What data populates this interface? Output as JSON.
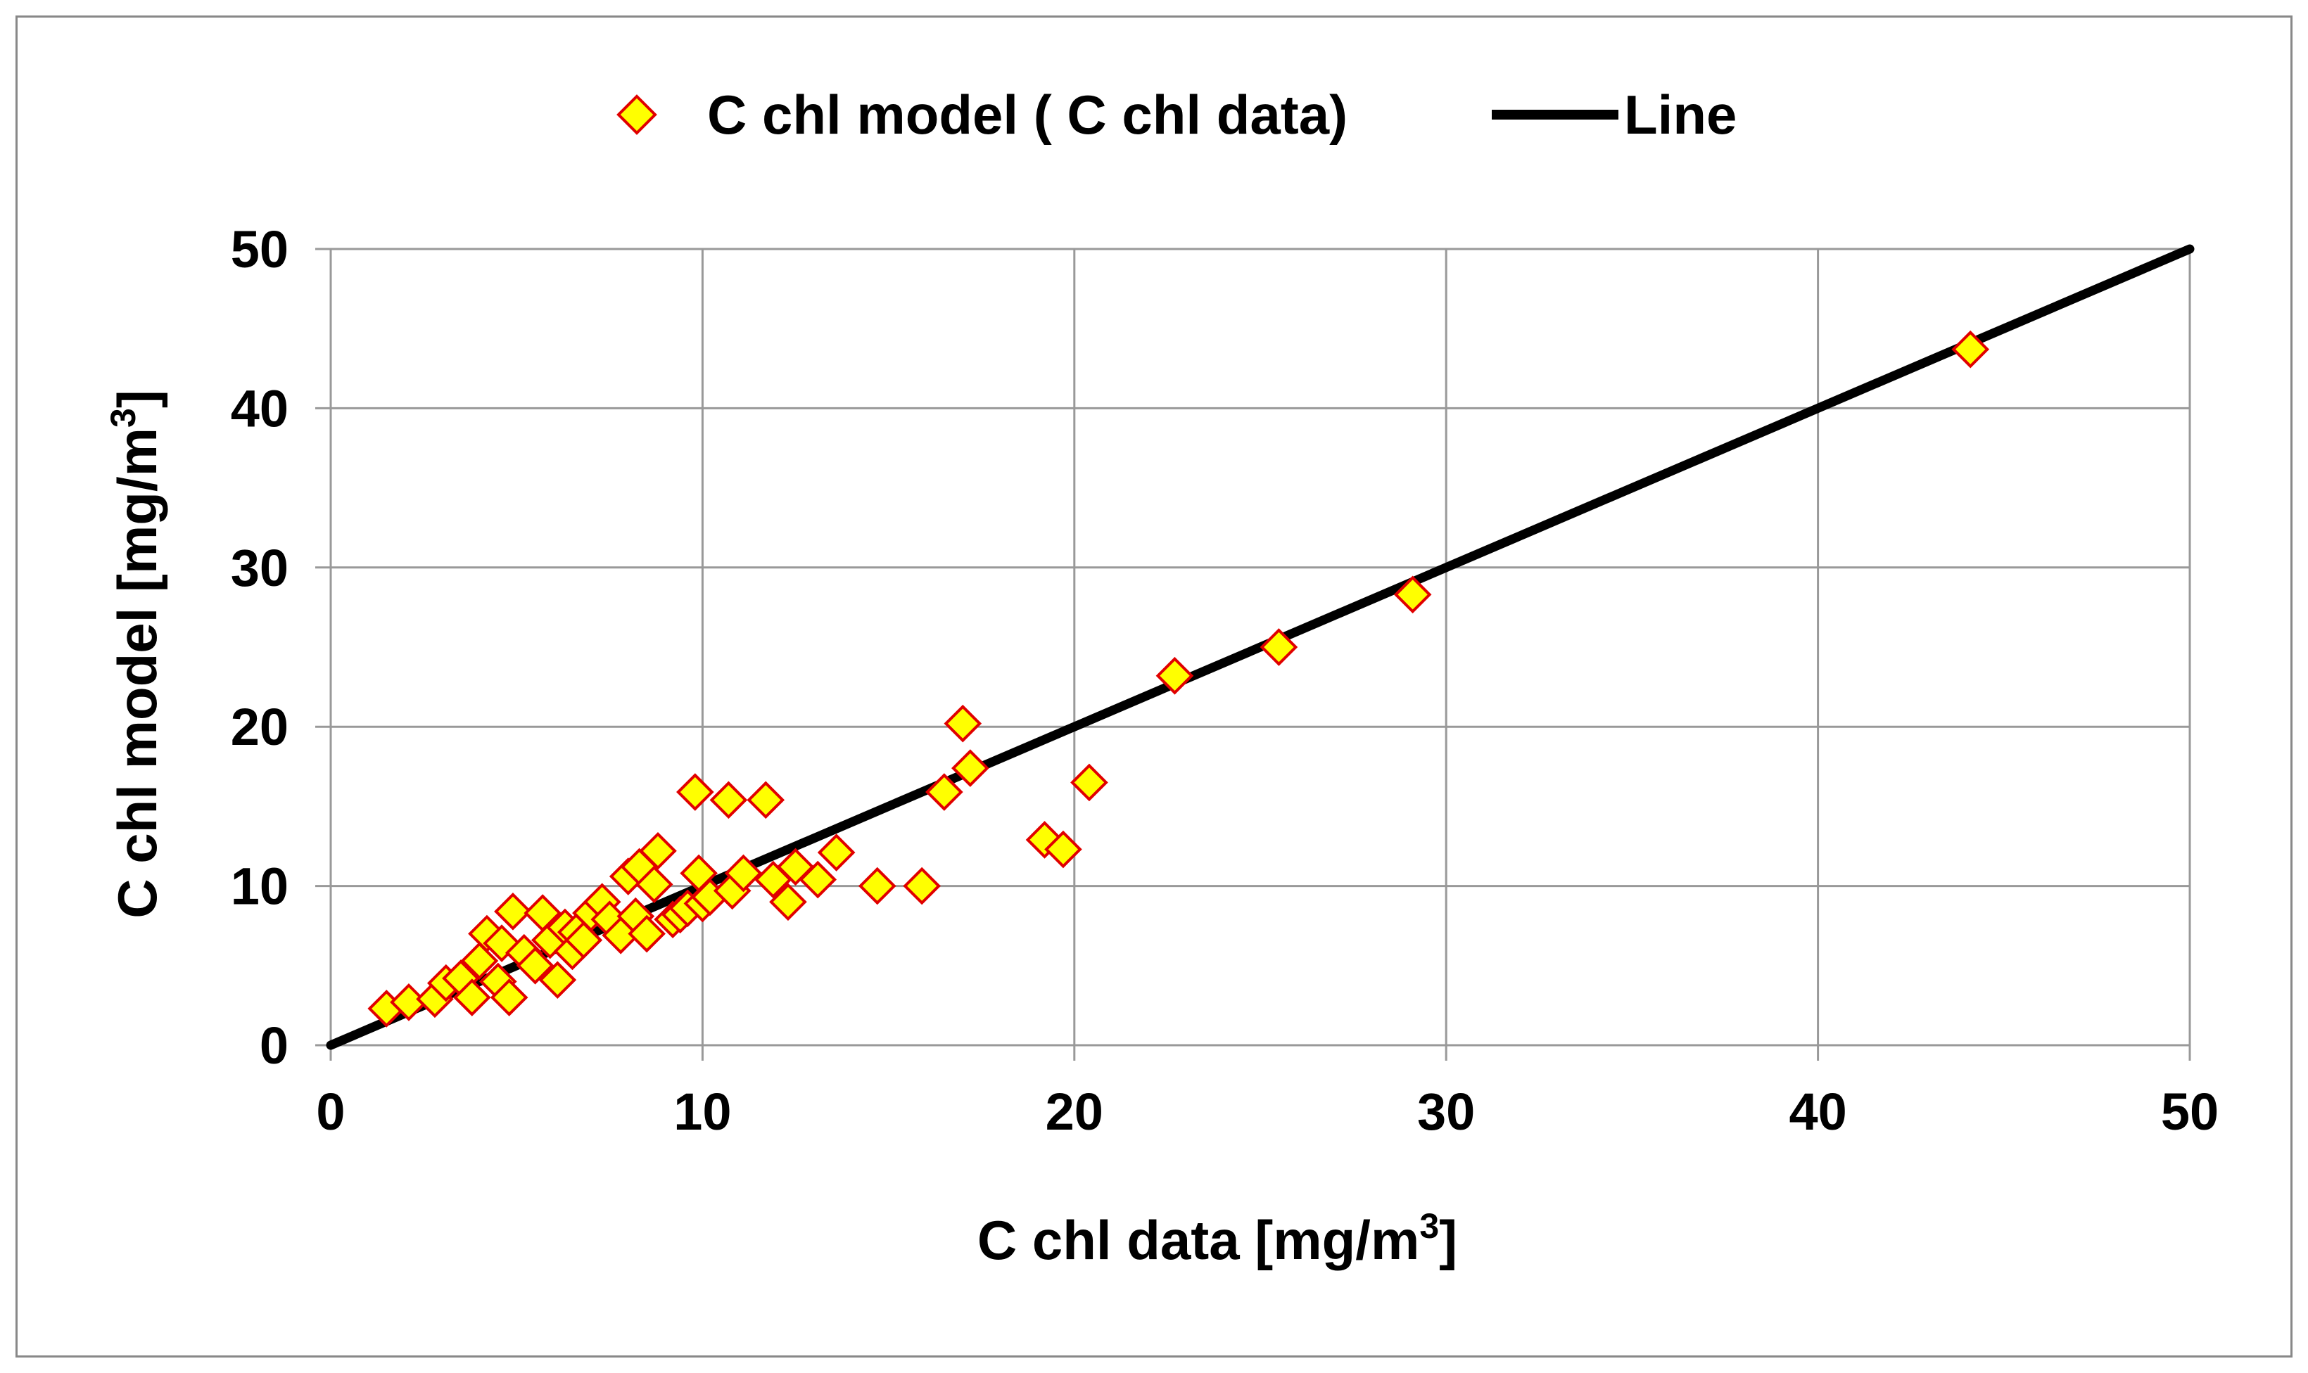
{
  "chart_data": {
    "type": "scatter",
    "title": "",
    "xlabel": "C chl data [mg/m",
    "xlabel_sup": "3",
    "xlabel_end": "]",
    "ylabel": "C chl model [mg/m",
    "ylabel_sup": "3",
    "ylabel_end": "]",
    "xlim": [
      0,
      50
    ],
    "ylim": [
      0,
      50
    ],
    "xticks": [
      0,
      10,
      20,
      30,
      40,
      50
    ],
    "yticks": [
      0,
      10,
      20,
      30,
      40,
      50
    ],
    "grid": true,
    "legend_position": "top-center",
    "colors": {
      "marker_fill": "#FFFF00",
      "marker_edge": "#E00000",
      "line": "#000000",
      "grid": "#999999"
    },
    "series": [
      {
        "name": "C chl model ( C chl data)",
        "kind": "scatter",
        "marker": "diamond",
        "points": [
          [
            1.5,
            2.3
          ],
          [
            2.1,
            2.7
          ],
          [
            2.8,
            2.9
          ],
          [
            3.1,
            3.9
          ],
          [
            3.5,
            4.2
          ],
          [
            3.8,
            3.0
          ],
          [
            4.0,
            5.3
          ],
          [
            4.2,
            7.0
          ],
          [
            4.5,
            4.0
          ],
          [
            4.6,
            6.4
          ],
          [
            4.8,
            3.0
          ],
          [
            4.9,
            8.4
          ],
          [
            5.2,
            5.8
          ],
          [
            5.5,
            5.0
          ],
          [
            5.7,
            8.3
          ],
          [
            5.9,
            6.6
          ],
          [
            6.1,
            4.1
          ],
          [
            6.3,
            7.4
          ],
          [
            6.5,
            5.9
          ],
          [
            6.6,
            7.1
          ],
          [
            6.8,
            6.6
          ],
          [
            7.0,
            8.3
          ],
          [
            7.3,
            9.0
          ],
          [
            7.5,
            7.9
          ],
          [
            7.8,
            6.9
          ],
          [
            8.0,
            10.6
          ],
          [
            8.2,
            8.1
          ],
          [
            8.3,
            11.2
          ],
          [
            8.5,
            7.0
          ],
          [
            8.7,
            10.1
          ],
          [
            8.8,
            12.2
          ],
          [
            9.2,
            7.9
          ],
          [
            9.4,
            8.2
          ],
          [
            9.6,
            8.6
          ],
          [
            9.8,
            15.9
          ],
          [
            9.9,
            10.8
          ],
          [
            10.0,
            8.9
          ],
          [
            10.2,
            9.3
          ],
          [
            10.7,
            15.4
          ],
          [
            10.8,
            9.7
          ],
          [
            11.1,
            10.8
          ],
          [
            11.7,
            15.4
          ],
          [
            11.9,
            10.4
          ],
          [
            12.3,
            9.0
          ],
          [
            12.5,
            11.2
          ],
          [
            13.1,
            10.4
          ],
          [
            13.6,
            12.1
          ],
          [
            14.7,
            10.0
          ],
          [
            15.9,
            10.0
          ],
          [
            16.5,
            15.9
          ],
          [
            17.0,
            20.2
          ],
          [
            17.2,
            17.4
          ],
          [
            19.2,
            12.9
          ],
          [
            19.7,
            12.3
          ],
          [
            20.4,
            16.5
          ],
          [
            22.7,
            23.2
          ],
          [
            25.5,
            25.0
          ],
          [
            29.1,
            28.3
          ],
          [
            44.1,
            43.7
          ]
        ]
      },
      {
        "name": "Line",
        "kind": "line",
        "points": [
          [
            0,
            0
          ],
          [
            50,
            50
          ]
        ]
      }
    ]
  }
}
